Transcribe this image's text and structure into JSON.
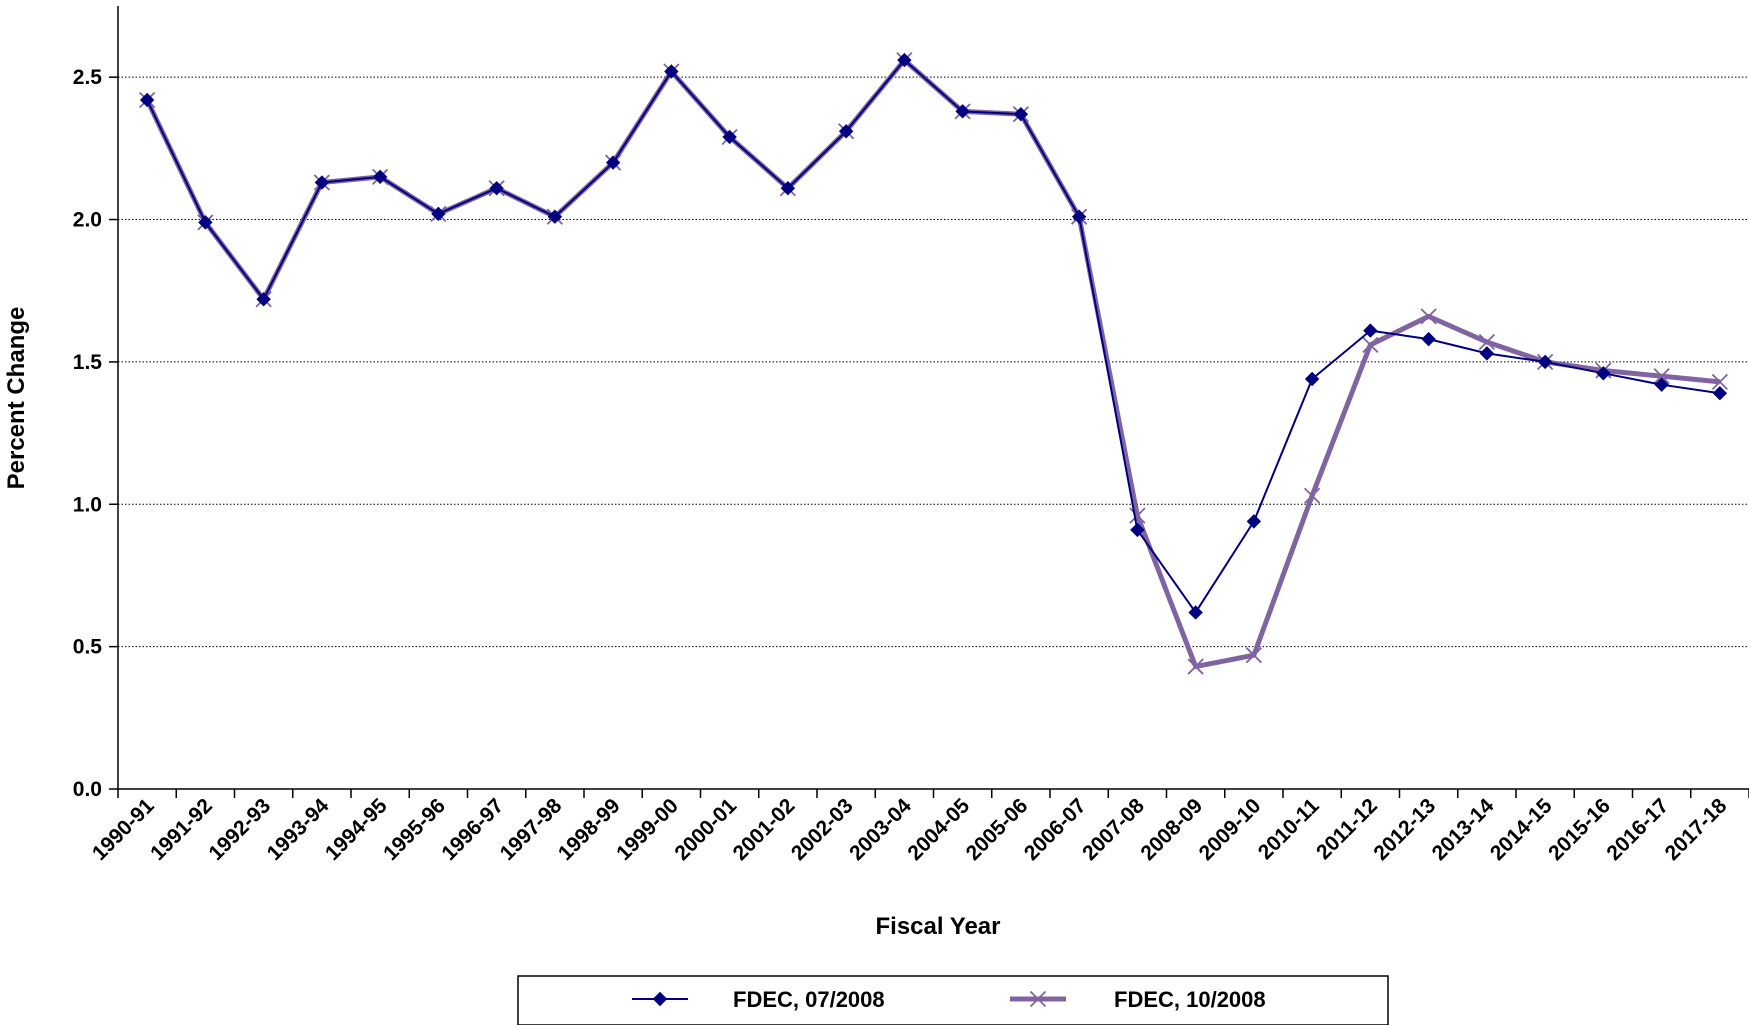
{
  "chart_data": {
    "type": "line",
    "title": "",
    "xlabel": "Fiscal Year",
    "ylabel": "Percent Change",
    "ylim": [
      0,
      2.75
    ],
    "yticks": [
      "0.0",
      "0.5",
      "1.0",
      "1.5",
      "2.0",
      "2.5"
    ],
    "grid": "horizontal dotted",
    "legend_position": "bottom",
    "categories": [
      "1990-91",
      "1991-92",
      "1992-93",
      "1993-94",
      "1994-95",
      "1995-96",
      "1996-97",
      "1997-98",
      "1998-99",
      "1999-00",
      "2000-01",
      "2001-02",
      "2002-03",
      "2003-04",
      "2004-05",
      "2005-06",
      "2006-07",
      "2007-08",
      "2008-09",
      "2009-10",
      "2010-11",
      "2011-12",
      "2012-13",
      "2013-14",
      "2014-15",
      "2015-16",
      "2016-17",
      "2017-18"
    ],
    "series": [
      {
        "name": "FDEC, 07/2008",
        "color": "#000080",
        "marker": "diamond",
        "values": [
          2.42,
          1.99,
          1.72,
          2.13,
          2.15,
          2.02,
          2.11,
          2.01,
          2.2,
          2.52,
          2.29,
          2.11,
          2.31,
          2.56,
          2.38,
          2.37,
          2.01,
          0.91,
          0.62,
          0.94,
          1.44,
          1.61,
          1.58,
          1.53,
          1.5,
          1.46,
          1.42,
          1.39
        ]
      },
      {
        "name": "FDEC, 10/2008",
        "color": "#8064A2",
        "marker": "x",
        "values": [
          2.42,
          1.99,
          1.72,
          2.13,
          2.15,
          2.02,
          2.11,
          2.01,
          2.2,
          2.52,
          2.29,
          2.11,
          2.31,
          2.56,
          2.38,
          2.37,
          2.01,
          0.96,
          0.43,
          0.47,
          1.03,
          1.56,
          1.66,
          1.57,
          1.5,
          1.47,
          1.45,
          1.43
        ]
      }
    ]
  }
}
